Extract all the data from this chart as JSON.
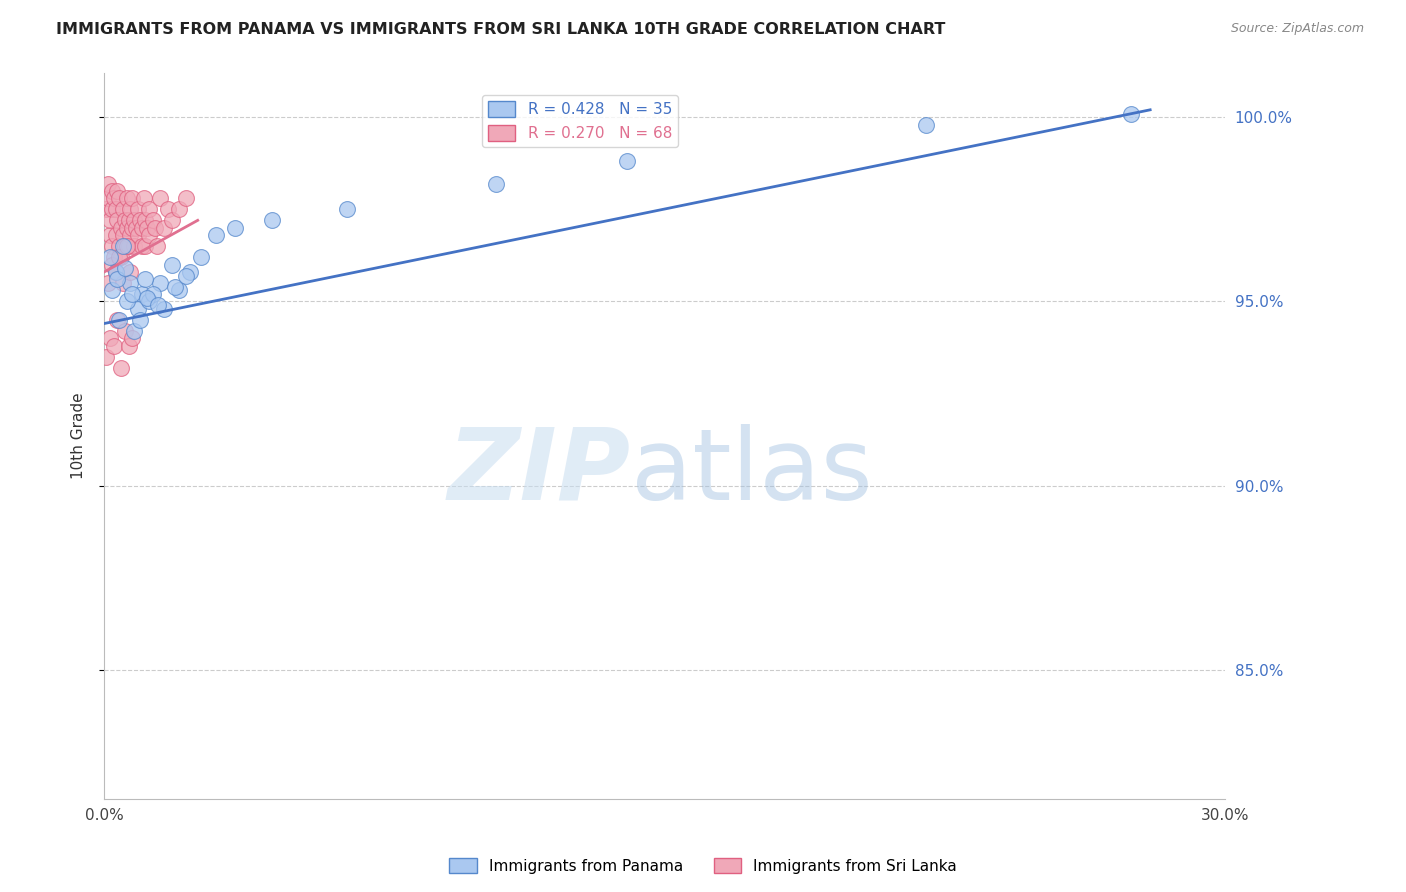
{
  "title": "IMMIGRANTS FROM PANAMA VS IMMIGRANTS FROM SRI LANKA 10TH GRADE CORRELATION CHART",
  "source": "Source: ZipAtlas.com",
  "ylabel": "10th Grade",
  "right_yticks": [
    85.0,
    90.0,
    95.0,
    100.0
  ],
  "right_ytick_labels": [
    "85.0%",
    "90.0%",
    "95.0%",
    "100.0%"
  ],
  "legend_blue_r": "R = 0.428",
  "legend_blue_n": "N = 35",
  "legend_pink_r": "R = 0.270",
  "legend_pink_n": "N = 68",
  "legend_label_blue": "Immigrants from Panama",
  "legend_label_pink": "Immigrants from Sri Lanka",
  "blue_face_color": "#aac8f0",
  "blue_edge_color": "#5588cc",
  "pink_face_color": "#f0a8b8",
  "pink_edge_color": "#e06080",
  "blue_line_color": "#4472c4",
  "pink_line_color": "#e07090",
  "right_axis_color": "#4472c4",
  "xmin": 0.0,
  "xmax": 30.0,
  "ymin": 81.5,
  "ymax": 101.2,
  "blue_scatter_x": [
    0.15,
    0.3,
    0.5,
    0.7,
    0.9,
    1.0,
    1.2,
    1.5,
    1.8,
    2.0,
    2.3,
    2.6,
    0.4,
    0.6,
    0.8,
    1.1,
    1.3,
    1.6,
    1.9,
    2.2,
    3.0,
    3.5,
    4.5,
    6.5,
    10.5,
    14.0,
    22.0,
    27.5,
    0.2,
    0.35,
    0.55,
    0.75,
    0.95,
    1.15,
    1.45
  ],
  "blue_scatter_y": [
    96.2,
    95.8,
    96.5,
    95.5,
    94.8,
    95.2,
    95.0,
    95.5,
    96.0,
    95.3,
    95.8,
    96.2,
    94.5,
    95.0,
    94.2,
    95.6,
    95.2,
    94.8,
    95.4,
    95.7,
    96.8,
    97.0,
    97.2,
    97.5,
    98.2,
    98.8,
    99.8,
    100.1,
    95.3,
    95.6,
    95.9,
    95.2,
    94.5,
    95.1,
    94.9
  ],
  "pink_scatter_x": [
    0.05,
    0.1,
    0.1,
    0.15,
    0.15,
    0.2,
    0.2,
    0.2,
    0.25,
    0.25,
    0.3,
    0.3,
    0.35,
    0.35,
    0.4,
    0.4,
    0.45,
    0.45,
    0.5,
    0.5,
    0.55,
    0.55,
    0.6,
    0.6,
    0.65,
    0.65,
    0.7,
    0.7,
    0.75,
    0.75,
    0.8,
    0.8,
    0.85,
    0.9,
    0.9,
    0.95,
    1.0,
    1.0,
    1.05,
    1.1,
    1.1,
    1.15,
    1.2,
    1.2,
    1.3,
    1.35,
    1.4,
    1.5,
    1.6,
    1.7,
    1.8,
    2.0,
    2.2,
    0.1,
    0.2,
    0.3,
    0.4,
    0.5,
    0.6,
    0.7,
    0.05,
    0.15,
    0.25,
    0.35,
    0.45,
    0.55,
    0.65,
    0.75
  ],
  "pink_scatter_y": [
    97.5,
    97.8,
    98.2,
    96.8,
    97.2,
    97.5,
    98.0,
    96.5,
    97.8,
    96.2,
    97.5,
    96.8,
    97.2,
    98.0,
    96.5,
    97.8,
    97.0,
    96.2,
    97.5,
    96.8,
    97.2,
    96.5,
    97.8,
    97.0,
    96.5,
    97.2,
    97.5,
    96.8,
    97.0,
    97.8,
    96.5,
    97.2,
    97.0,
    97.5,
    96.8,
    97.2,
    97.0,
    96.5,
    97.8,
    97.2,
    96.5,
    97.0,
    97.5,
    96.8,
    97.2,
    97.0,
    96.5,
    97.8,
    97.0,
    97.5,
    97.2,
    97.5,
    97.8,
    95.5,
    96.0,
    95.8,
    96.2,
    95.5,
    96.5,
    95.8,
    93.5,
    94.0,
    93.8,
    94.5,
    93.2,
    94.2,
    93.8,
    94.0
  ],
  "blue_trendline_x": [
    0.0,
    28.0
  ],
  "blue_trendline_y": [
    94.4,
    100.2
  ],
  "pink_trendline_x": [
    0.0,
    2.5
  ],
  "pink_trendline_y": [
    95.8,
    97.2
  ]
}
